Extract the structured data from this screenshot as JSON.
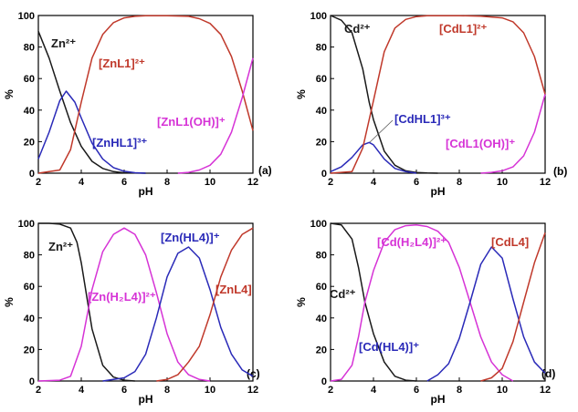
{
  "figure": {
    "panels": [
      {
        "id": "a",
        "panel_label": "(a)",
        "xlabel": "pH",
        "ylabel": "%",
        "title": ""
      },
      {
        "id": "b",
        "panel_label": "(b)",
        "xlabel": "pH",
        "ylabel": "%",
        "title": ""
      },
      {
        "id": "c",
        "panel_label": "(c)",
        "xlabel": "pH",
        "ylabel": "%",
        "title": ""
      },
      {
        "id": "d",
        "panel_label": "(d)",
        "xlabel": "pH",
        "ylabel": "%",
        "title": ""
      }
    ]
  },
  "chart_data": [
    {
      "type": "line",
      "panel": "(a)",
      "xlabel": "pH",
      "ylabel": "%",
      "xlim": [
        2,
        12
      ],
      "ylim": [
        0,
        100
      ],
      "xticks": [
        2,
        4,
        6,
        8,
        10,
        12
      ],
      "yticks": [
        0,
        20,
        40,
        60,
        80,
        100
      ],
      "grid": false,
      "legend": "none",
      "series": [
        {
          "name": "Zn²⁺",
          "color": "#1a1a1a",
          "x": [
            2.0,
            2.5,
            3.0,
            3.5,
            4.0,
            4.5,
            5.0,
            5.5,
            6.0,
            6.5,
            7.0
          ],
          "y": [
            90,
            73,
            52,
            32,
            17,
            7.5,
            3,
            1,
            0.3,
            0.1,
            0
          ]
        },
        {
          "name": "[ZnHL1]³⁺",
          "color": "#2a2ab8",
          "x": [
            2.0,
            2.5,
            3.0,
            3.3,
            3.7,
            4.0,
            4.5,
            5.0,
            5.5,
            6.0,
            6.5,
            7.0
          ],
          "y": [
            9,
            26,
            46,
            52,
            45,
            35,
            19,
            9,
            3.5,
            1.2,
            0.3,
            0
          ]
        },
        {
          "name": "[ZnL1]²⁺",
          "color": "#c0392b",
          "x": [
            2.0,
            3.0,
            3.5,
            4.0,
            4.5,
            5.0,
            5.5,
            6.0,
            6.5,
            7.0,
            8.0,
            9.0,
            9.5,
            10.0,
            10.5,
            11.0,
            11.5,
            12.0
          ],
          "y": [
            0,
            2,
            15,
            45,
            73,
            88,
            95.5,
            98.5,
            99.5,
            99.8,
            99.8,
            99.5,
            98,
            95,
            88,
            74,
            52,
            27
          ]
        },
        {
          "name": "[ZnL1(OH)]⁺",
          "color": "#d633d6",
          "x": [
            8.5,
            9.0,
            9.5,
            10.0,
            10.5,
            11.0,
            11.5,
            12.0
          ],
          "y": [
            0,
            0.5,
            2,
            5,
            12,
            26,
            48,
            73
          ]
        }
      ],
      "annotations": [
        "Zn²⁺",
        "[ZnL1]²⁺",
        "[ZnHL1]³⁺",
        "[ZnL1(OH)]⁺"
      ]
    },
    {
      "type": "line",
      "panel": "(b)",
      "xlabel": "pH",
      "ylabel": "%",
      "xlim": [
        2,
        12
      ],
      "ylim": [
        0,
        100
      ],
      "xticks": [
        2,
        4,
        6,
        8,
        10,
        12
      ],
      "yticks": [
        0,
        20,
        40,
        60,
        80,
        100
      ],
      "grid": false,
      "legend": "none",
      "series": [
        {
          "name": "Cd²⁺",
          "color": "#1a1a1a",
          "x": [
            2.0,
            2.5,
            3.0,
            3.5,
            3.8,
            4.0,
            4.5,
            5.0,
            5.5,
            6.0,
            6.5,
            7.0
          ],
          "y": [
            100,
            97,
            89,
            66,
            45,
            34,
            14,
            5,
            1.5,
            0.4,
            0.1,
            0
          ]
        },
        {
          "name": "[CdHL1]³⁺",
          "color": "#2a2ab8",
          "x": [
            2.0,
            2.5,
            3.0,
            3.5,
            3.8,
            4.0,
            4.5,
            5.0,
            5.5,
            6.0
          ],
          "y": [
            1,
            4,
            10,
            18,
            19.5,
            18,
            9,
            3,
            1,
            0
          ]
        },
        {
          "name": "[CdL1]²⁺",
          "color": "#c0392b",
          "x": [
            2.0,
            3.0,
            3.5,
            4.0,
            4.5,
            5.0,
            5.5,
            6.0,
            6.5,
            7.0,
            8.0,
            9.0,
            10.0,
            10.5,
            11.0,
            11.5,
            12.0
          ],
          "y": [
            0,
            1,
            16,
            46,
            77,
            92,
            97.5,
            99.3,
            99.8,
            99.9,
            99.9,
            99.6,
            98.5,
            96,
            89,
            74,
            50
          ]
        },
        {
          "name": "[CdL1(OH)]⁺",
          "color": "#d633d6",
          "x": [
            9.0,
            9.5,
            10.0,
            10.5,
            11.0,
            11.5,
            12.0
          ],
          "y": [
            0,
            0.5,
            1.5,
            4,
            11,
            26,
            50
          ]
        }
      ],
      "annotations": [
        "Cd²⁺",
        "[CdL1]²⁺",
        "[CdHL1]³⁺",
        "[CdL1(OH)]⁺"
      ]
    },
    {
      "type": "line",
      "panel": "(c)",
      "xlabel": "pH",
      "ylabel": "%",
      "xlim": [
        2,
        12
      ],
      "ylim": [
        0,
        100
      ],
      "xticks": [
        2,
        4,
        6,
        8,
        10,
        12
      ],
      "yticks": [
        0,
        20,
        40,
        60,
        80,
        100
      ],
      "grid": false,
      "legend": "none",
      "series": [
        {
          "name": "Zn²⁺",
          "color": "#1a1a1a",
          "x": [
            2.0,
            2.5,
            3.0,
            3.5,
            3.8,
            4.0,
            4.3,
            4.5,
            5.0,
            5.5,
            6.0,
            6.5
          ],
          "y": [
            100,
            100,
            99.5,
            97,
            88,
            75,
            50,
            33,
            10,
            2.5,
            0.5,
            0
          ]
        },
        {
          "name": "[Zn(H₂L4)]²⁺",
          "color": "#d633d6",
          "x": [
            2.0,
            3.0,
            3.5,
            4.0,
            4.5,
            5.0,
            5.5,
            6.0,
            6.5,
            7.0,
            7.5,
            8.0,
            8.5,
            9.0,
            9.5,
            10.0
          ],
          "y": [
            0,
            0.5,
            3,
            22,
            58,
            82,
            93,
            97,
            93,
            80,
            56,
            30,
            12,
            4,
            1,
            0
          ]
        },
        {
          "name": "[Zn(HL4)]⁺",
          "color": "#2a2ab8",
          "x": [
            5.0,
            6.0,
            6.5,
            7.0,
            7.5,
            8.0,
            8.5,
            9.0,
            9.5,
            10.0,
            10.5,
            11.0,
            11.5,
            12.0
          ],
          "y": [
            0,
            2,
            6,
            17,
            40,
            66,
            81,
            85,
            78,
            58,
            34,
            17,
            7,
            3
          ]
        },
        {
          "name": "[ZnL4]",
          "color": "#c0392b",
          "x": [
            7.5,
            8.0,
            8.5,
            9.0,
            9.5,
            10.0,
            10.5,
            11.0,
            11.5,
            12.0
          ],
          "y": [
            0,
            1,
            4,
            12,
            22,
            42,
            66,
            83,
            93,
            97
          ]
        }
      ],
      "annotations": [
        "Zn²⁺",
        "[Zn(H₂L4)]²⁺",
        "[Zn(HL4)]⁺",
        "[ZnL4]"
      ]
    },
    {
      "type": "line",
      "panel": "(d)",
      "xlabel": "pH",
      "ylabel": "%",
      "xlim": [
        2,
        12
      ],
      "ylim": [
        0,
        100
      ],
      "xticks": [
        2,
        4,
        6,
        8,
        10,
        12
      ],
      "yticks": [
        0,
        20,
        40,
        60,
        80,
        100
      ],
      "grid": false,
      "legend": "none",
      "series": [
        {
          "name": "Cd²⁺",
          "color": "#1a1a1a",
          "x": [
            2.0,
            2.5,
            3.0,
            3.3,
            3.6,
            4.0,
            4.5,
            5.0,
            5.5,
            6.0
          ],
          "y": [
            100,
            99,
            90,
            72,
            50,
            30,
            12,
            3,
            0.5,
            0
          ]
        },
        {
          "name": "[Cd(H₂L4)]²⁺",
          "color": "#d633d6",
          "x": [
            2.0,
            2.5,
            3.0,
            3.3,
            3.6,
            4.0,
            4.5,
            5.0,
            5.5,
            6.0,
            6.5,
            7.0,
            7.5,
            8.0,
            8.5,
            9.0,
            9.5,
            10.0,
            10.5
          ],
          "y": [
            0,
            1,
            10,
            28,
            50,
            70,
            88,
            96,
            98.5,
            99,
            98,
            95,
            88,
            72,
            50,
            28,
            12,
            4,
            0
          ]
        },
        {
          "name": "[Cd(HL4)]⁺",
          "color": "#2a2ab8",
          "x": [
            6.5,
            7.0,
            7.5,
            8.0,
            8.5,
            9.0,
            9.5,
            10.0,
            10.5,
            11.0,
            11.5,
            12.0
          ],
          "y": [
            0,
            4,
            11,
            27,
            50,
            74,
            85,
            78,
            52,
            28,
            12,
            5
          ]
        },
        {
          "name": "[CdL4]",
          "color": "#c0392b",
          "x": [
            9.0,
            9.5,
            10.0,
            10.5,
            11.0,
            11.5,
            12.0
          ],
          "y": [
            0,
            2,
            8,
            25,
            50,
            75,
            94
          ]
        }
      ],
      "annotations": [
        "Cd²⁺",
        "[Cd(H₂L4)]²⁺",
        "[Cd(HL4)]⁺",
        "[CdL4]"
      ]
    }
  ]
}
